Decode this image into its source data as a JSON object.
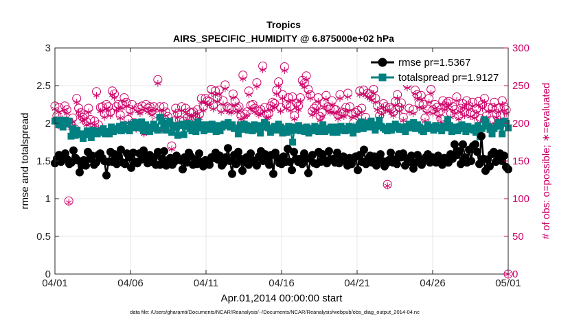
{
  "colors": {
    "rmse": "#000000",
    "spread": "#008080",
    "obs": "#CC0066",
    "grid": "#e6e6e6",
    "axis": "#262626"
  },
  "chart_data": {
    "type": "line",
    "title": "Tropics",
    "subtitle": "AIRS_SPECIFIC_HUMIDITY @ 6.875000e+02 hPa",
    "xlabel": "Apr.01,2014 00:00:00 start",
    "ylabel_left": "rmse and totalspread",
    "ylabel_right": "# of obs: o=possible; ∗=evaluated",
    "footnote": "data file: /Users/gharamti/Documents/NCAR/Reanalysis/~/Documents/NCAR/Reanalysis/webpub/obs_diag_output_2014-04.nc",
    "xlim": [
      0,
      30
    ],
    "ylim_left": [
      0,
      3
    ],
    "ylim_right": [
      0,
      300
    ],
    "x_ticks": [
      0,
      5,
      10,
      15,
      20,
      25,
      30
    ],
    "x_tick_labels": [
      "04/01",
      "04/06",
      "04/11",
      "04/16",
      "04/21",
      "04/26",
      "05/01"
    ],
    "y_left_ticks": [
      0,
      0.5,
      1,
      1.5,
      2,
      2.5,
      3
    ],
    "y_left_tick_labels": [
      "0",
      "0.5",
      "1",
      "1.5",
      "2",
      "2.5",
      "3"
    ],
    "y_right_ticks": [
      0,
      50,
      100,
      150,
      200,
      250,
      300
    ],
    "y_right_tick_labels": [
      "0",
      "50",
      "100",
      "150",
      "200",
      "250",
      "300"
    ],
    "legend_position": "top-right",
    "series": [
      {
        "name": "rmse pr=1.5367",
        "axis": "left",
        "marker": "circle",
        "values": [
          1.47,
          1.53,
          1.58,
          1.49,
          1.57,
          1.6,
          1.52,
          1.46,
          1.48,
          1.64,
          1.54,
          1.51,
          1.35,
          1.44,
          1.51,
          1.44,
          1.62,
          1.53,
          1.57,
          1.45,
          1.48,
          1.58,
          1.6,
          1.54,
          1.5,
          1.31,
          1.49,
          1.62,
          1.49,
          1.59,
          1.46,
          1.56,
          1.65,
          1.48,
          1.46,
          1.6,
          1.55,
          1.41,
          1.61,
          1.49,
          1.47,
          1.6,
          1.52,
          1.64,
          1.55,
          1.47,
          1.58,
          1.49,
          1.55,
          1.45,
          1.62,
          1.45,
          1.53,
          1.63,
          1.44,
          1.51,
          1.54,
          1.45,
          1.49,
          1.57,
          1.53,
          1.51,
          1.39,
          1.55,
          1.48,
          1.61,
          1.56,
          1.45,
          1.52,
          1.46,
          1.6,
          1.49,
          1.43,
          1.51,
          1.47,
          1.45,
          1.55,
          1.54,
          1.61,
          1.52,
          1.57,
          1.44,
          1.48,
          1.55,
          1.67,
          1.5,
          1.33,
          1.58,
          1.46,
          1.62,
          1.53,
          1.37,
          1.49,
          1.55,
          1.45,
          1.6,
          1.51,
          1.48,
          1.44,
          1.56,
          1.63,
          1.5,
          1.59,
          1.51,
          1.45,
          1.58,
          1.33,
          1.61,
          1.54,
          1.47,
          1.46,
          1.56,
          1.49,
          1.66,
          1.49,
          1.38,
          1.62,
          1.53,
          1.49,
          1.53,
          1.46,
          1.6,
          1.53,
          1.34,
          1.53,
          1.58,
          1.47,
          1.46,
          1.62,
          1.49,
          1.59,
          1.51,
          1.47,
          1.63,
          1.52,
          1.53,
          1.48,
          1.61,
          1.47,
          1.54,
          1.56,
          1.5,
          1.44,
          1.54,
          1.46,
          1.53,
          1.56,
          1.38,
          1.58,
          1.49,
          1.65,
          1.46,
          1.52,
          1.57,
          1.48,
          1.56,
          1.44,
          1.53,
          1.59,
          1.5,
          1.43,
          1.47,
          1.51,
          1.61,
          1.48,
          1.52,
          1.46,
          1.59,
          1.55,
          1.6,
          1.44,
          1.53,
          1.49,
          1.57,
          1.4,
          1.48,
          1.58,
          1.52,
          1.45,
          1.5,
          1.55,
          1.59,
          1.48,
          1.55,
          1.53,
          1.48,
          1.57,
          1.51,
          1.45,
          1.54,
          1.52,
          1.48,
          1.59,
          1.53,
          1.72,
          1.58,
          1.63,
          1.46,
          1.72,
          1.55,
          1.48,
          1.65,
          1.5,
          1.7,
          1.72,
          1.62,
          1.46,
          1.83,
          1.53,
          1.37,
          1.52,
          1.43,
          1.59,
          1.62,
          1.49,
          1.57,
          1.6,
          1.5,
          1.57,
          1.42,
          1.39
        ]
      },
      {
        "name": "totalspread pr=1.9127",
        "axis": "left",
        "marker": "square",
        "values": [
          2.03,
          2.04,
          1.98,
          2.04,
          1.95,
          2.04,
          1.99,
          2.03,
          1.83,
          1.93,
          1.84,
          1.91,
          1.85,
          1.86,
          1.8,
          1.86,
          1.9,
          1.85,
          1.81,
          1.91,
          1.87,
          1.86,
          1.88,
          1.9,
          1.93,
          1.86,
          1.89,
          1.86,
          1.95,
          1.89,
          1.93,
          1.91,
          1.96,
          1.9,
          1.98,
          1.92,
          1.94,
          1.9,
          1.99,
          1.95,
          2.01,
          1.94,
          1.97,
          2.02,
          1.9,
          1.98,
          1.95,
          1.89,
          1.93,
          1.99,
          1.95,
          1.91,
          2.08,
          2.03,
          1.97,
          1.91,
          2.0,
          2.03,
          1.88,
          1.97,
          1.94,
          1.84,
          1.97,
          1.99,
          1.85,
          1.96,
          2.0,
          1.93,
          1.9,
          1.99,
          1.89,
          2.02,
          1.94,
          1.98,
          1.9,
          1.96,
          1.98,
          1.92,
          1.99,
          1.94,
          1.89,
          1.97,
          1.9,
          1.95,
          1.99,
          1.97,
          2.01,
          1.95,
          1.98,
          1.93,
          1.94,
          1.86,
          1.98,
          1.92,
          1.99,
          1.97,
          1.91,
          1.96,
          1.9,
          1.98,
          1.92,
          1.97,
          1.87,
          1.95,
          2.01,
          1.98,
          1.94,
          1.88,
          1.93,
          1.96,
          1.91,
          1.99,
          1.95,
          1.87,
          1.93,
          1.88,
          1.96,
          1.9,
          1.75,
          1.95,
          1.91,
          1.97,
          1.9,
          1.94,
          1.89,
          1.95,
          1.87,
          1.93,
          1.9,
          1.96,
          1.92,
          1.89,
          1.94,
          1.98,
          1.89,
          1.93,
          1.91,
          1.95,
          1.88,
          1.95,
          1.88,
          1.91,
          1.96,
          1.92,
          1.9,
          1.93,
          1.96,
          1.91,
          1.87,
          1.95,
          1.92,
          1.98,
          2.02,
          1.93,
          1.96,
          2.0,
          1.95,
          2.03,
          1.98,
          1.91,
          1.96,
          2.04,
          1.96,
          1.94,
          1.92,
          1.9,
          1.96,
          1.91,
          1.94,
          1.99,
          1.96,
          1.92,
          1.95,
          1.92,
          1.89,
          1.96,
          1.99,
          1.94,
          2.01,
          1.93,
          1.98,
          1.95,
          1.91,
          1.89,
          1.93,
          1.98,
          1.93,
          1.95,
          1.91,
          1.97,
          1.95,
          1.93,
          1.9,
          1.96,
          1.94,
          2.05,
          1.97,
          1.89,
          1.95,
          1.92,
          1.9,
          1.96,
          1.98,
          1.93,
          1.89,
          1.96,
          1.92,
          1.94,
          1.91,
          1.88,
          1.97,
          1.82,
          1.93,
          2.05,
          2.02,
          1.96,
          1.92,
          1.86,
          1.93,
          1.96,
          2.01,
          1.96,
          1.86,
          2.03,
          2.0,
          1.94
        ]
      },
      {
        "name": "obs possible",
        "axis": "right",
        "marker": "circle-open",
        "values": [
          223,
          210,
          221,
          200,
          211,
          223,
          218,
          97,
          199,
          207,
          193,
          233,
          220,
          214,
          208,
          210,
          202,
          220,
          205,
          190,
          203,
          242,
          198,
          221,
          222,
          213,
          225,
          222,
          215,
          243,
          239,
          222,
          225,
          211,
          225,
          234,
          228,
          205,
          218,
          225,
          201,
          196,
          221,
          218,
          223,
          190,
          225,
          220,
          222,
          216,
          222,
          202,
          258,
          222,
          195,
          222,
          215,
          209,
          195,
          170,
          203,
          220,
          213,
          204,
          222,
          203,
          220,
          208,
          215,
          214,
          215,
          208,
          218,
          212,
          233,
          222,
          233,
          230,
          229,
          245,
          224,
          243,
          234,
          244,
          220,
          230,
          251,
          222,
          220,
          219,
          239,
          229,
          220,
          222,
          210,
          264,
          212,
          215,
          243,
          224,
          225,
          220,
          254,
          216,
          218,
          276,
          221,
          212,
          213,
          223,
          228,
          226,
          244,
          255,
          221,
          238,
          275,
          225,
          234,
          222,
          235,
          210,
          227,
          223,
          234,
          257,
          253,
          263,
          245,
          238,
          216,
          220,
          223,
          234,
          209,
          214,
          227,
          237,
          222,
          219,
          230,
          219,
          218,
          211,
          238,
          215,
          214,
          221,
          240,
          222,
          213,
          201,
          214,
          217,
          243,
          220,
          244,
          208,
          240,
          239,
          236,
          245,
          233,
          223,
          210,
          217,
          226,
          222,
          119,
          221,
          219,
          215,
          229,
          238,
          221,
          227,
          208,
          267,
          252,
          220,
          262,
          218,
          244,
          238,
          226,
          237,
          225,
          207,
          219,
          233,
          245,
          218,
          225,
          221,
          214,
          206,
          230,
          223,
          227,
          229,
          213,
          222,
          218,
          235,
          210,
          220,
          226,
          215,
          230,
          223,
          214,
          228,
          212,
          219,
          229,
          206,
          225,
          233,
          210,
          221,
          204,
          221,
          228,
          213,
          220,
          210,
          230,
          222,
          218,
          0
        ]
      },
      {
        "name": "obs evaluated",
        "axis": "right",
        "marker": "asterisk",
        "values": [
          219,
          205,
          215,
          195,
          206,
          218,
          213,
          95,
          194,
          202,
          189,
          228,
          215,
          209,
          203,
          205,
          198,
          215,
          200,
          186,
          198,
          237,
          194,
          216,
          217,
          208,
          220,
          217,
          210,
          238,
          234,
          217,
          220,
          207,
          220,
          229,
          223,
          201,
          213,
          220,
          197,
          192,
          216,
          213,
          218,
          186,
          220,
          215,
          217,
          211,
          217,
          198,
          253,
          217,
          191,
          217,
          210,
          205,
          191,
          166,
          198,
          215,
          208,
          200,
          217,
          198,
          215,
          204,
          210,
          209,
          210,
          204,
          213,
          207,
          228,
          217,
          228,
          225,
          224,
          240,
          219,
          238,
          229,
          239,
          215,
          225,
          246,
          217,
          215,
          214,
          234,
          224,
          215,
          217,
          206,
          259,
          208,
          211,
          238,
          219,
          220,
          215,
          249,
          211,
          213,
          271,
          216,
          207,
          208,
          218,
          223,
          221,
          239,
          250,
          216,
          233,
          270,
          220,
          229,
          217,
          230,
          206,
          222,
          218,
          229,
          252,
          248,
          258,
          240,
          233,
          211,
          215,
          218,
          229,
          204,
          209,
          222,
          232,
          217,
          214,
          225,
          214,
          213,
          206,
          233,
          210,
          209,
          216,
          235,
          217,
          208,
          197,
          209,
          212,
          238,
          215,
          239,
          204,
          235,
          234,
          231,
          240,
          228,
          218,
          206,
          212,
          221,
          217,
          117,
          216,
          214,
          210,
          224,
          233,
          216,
          222,
          204,
          262,
          247,
          215,
          257,
          213,
          239,
          233,
          221,
          232,
          220,
          203,
          214,
          228,
          240,
          213,
          220,
          216,
          209,
          202,
          225,
          218,
          222,
          224,
          208,
          217,
          213,
          230,
          206,
          215,
          221,
          210,
          225,
          218,
          209,
          223,
          207,
          214,
          224,
          202,
          220,
          228,
          206,
          216,
          199,
          216,
          223,
          208,
          215,
          205,
          225,
          217,
          213,
          0
        ]
      }
    ]
  }
}
